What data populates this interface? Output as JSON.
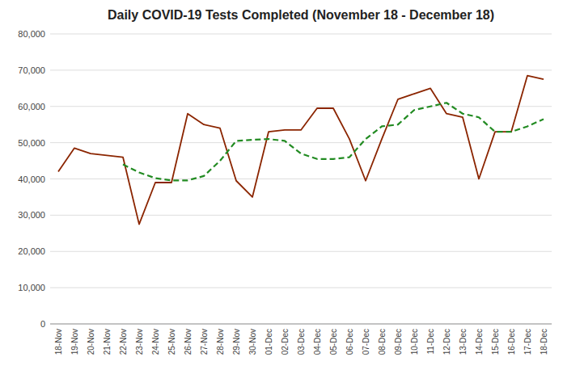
{
  "chart_data": {
    "type": "line",
    "title": "Daily COVID-19 Tests Completed (November 18 - December 18)",
    "categories": [
      "18-Nov",
      "19-Nov",
      "20-Nov",
      "21-Nov",
      "22-Nov",
      "23-Nov",
      "24-Nov",
      "25-Nov",
      "26-Nov",
      "27-Nov",
      "28-Nov",
      "29-Nov",
      "30-Nov",
      "01-Dec",
      "02-Dec",
      "03-Dec",
      "04-Dec",
      "05-Dec",
      "06-Dec",
      "07-Dec",
      "08-Dec",
      "09-Dec",
      "10-Dec",
      "11-Dec",
      "12-Dec",
      "13-Dec",
      "14-Dec",
      "15-Dec",
      "16-Dec",
      "17-Dec",
      "18-Dec"
    ],
    "series": [
      {
        "color": "#8B2500",
        "line_style": "solid",
        "values": [
          42000,
          48500,
          47000,
          46500,
          46000,
          27500,
          39000,
          39000,
          58000,
          55000,
          54000,
          39500,
          35000,
          53000,
          53500,
          53500,
          59500,
          59500,
          51000,
          39500,
          51000,
          62000,
          63500,
          65000,
          58000,
          57000,
          40000,
          53000,
          53000,
          68500,
          67500
        ]
      },
      {
        "color": "#228B22",
        "line_style": "dashed",
        "values": [
          null,
          null,
          null,
          null,
          44000,
          41800,
          40200,
          39600,
          39600,
          40800,
          45000,
          50500,
          50800,
          51000,
          50500,
          47000,
          45500,
          45500,
          46000,
          51000,
          54500,
          55000,
          59000,
          60000,
          61000,
          58000,
          57000,
          53000,
          53000,
          54500,
          56500
        ]
      }
    ],
    "ylim": [
      0,
      80000
    ],
    "yticks": [
      0,
      {
        "value": 10000,
        "label": "10,000"
      },
      {
        "value": 20000,
        "label": "20,000"
      },
      {
        "value": 30000,
        "label": "30,000"
      },
      {
        "value": 40000,
        "label": "40,000"
      },
      {
        "value": 50000,
        "label": "50,000"
      },
      {
        "value": 60000,
        "label": "60,000"
      },
      {
        "value": 70000,
        "label": "70,000"
      },
      {
        "value": 80000,
        "label": "80,000"
      }
    ],
    "grid": true
  }
}
